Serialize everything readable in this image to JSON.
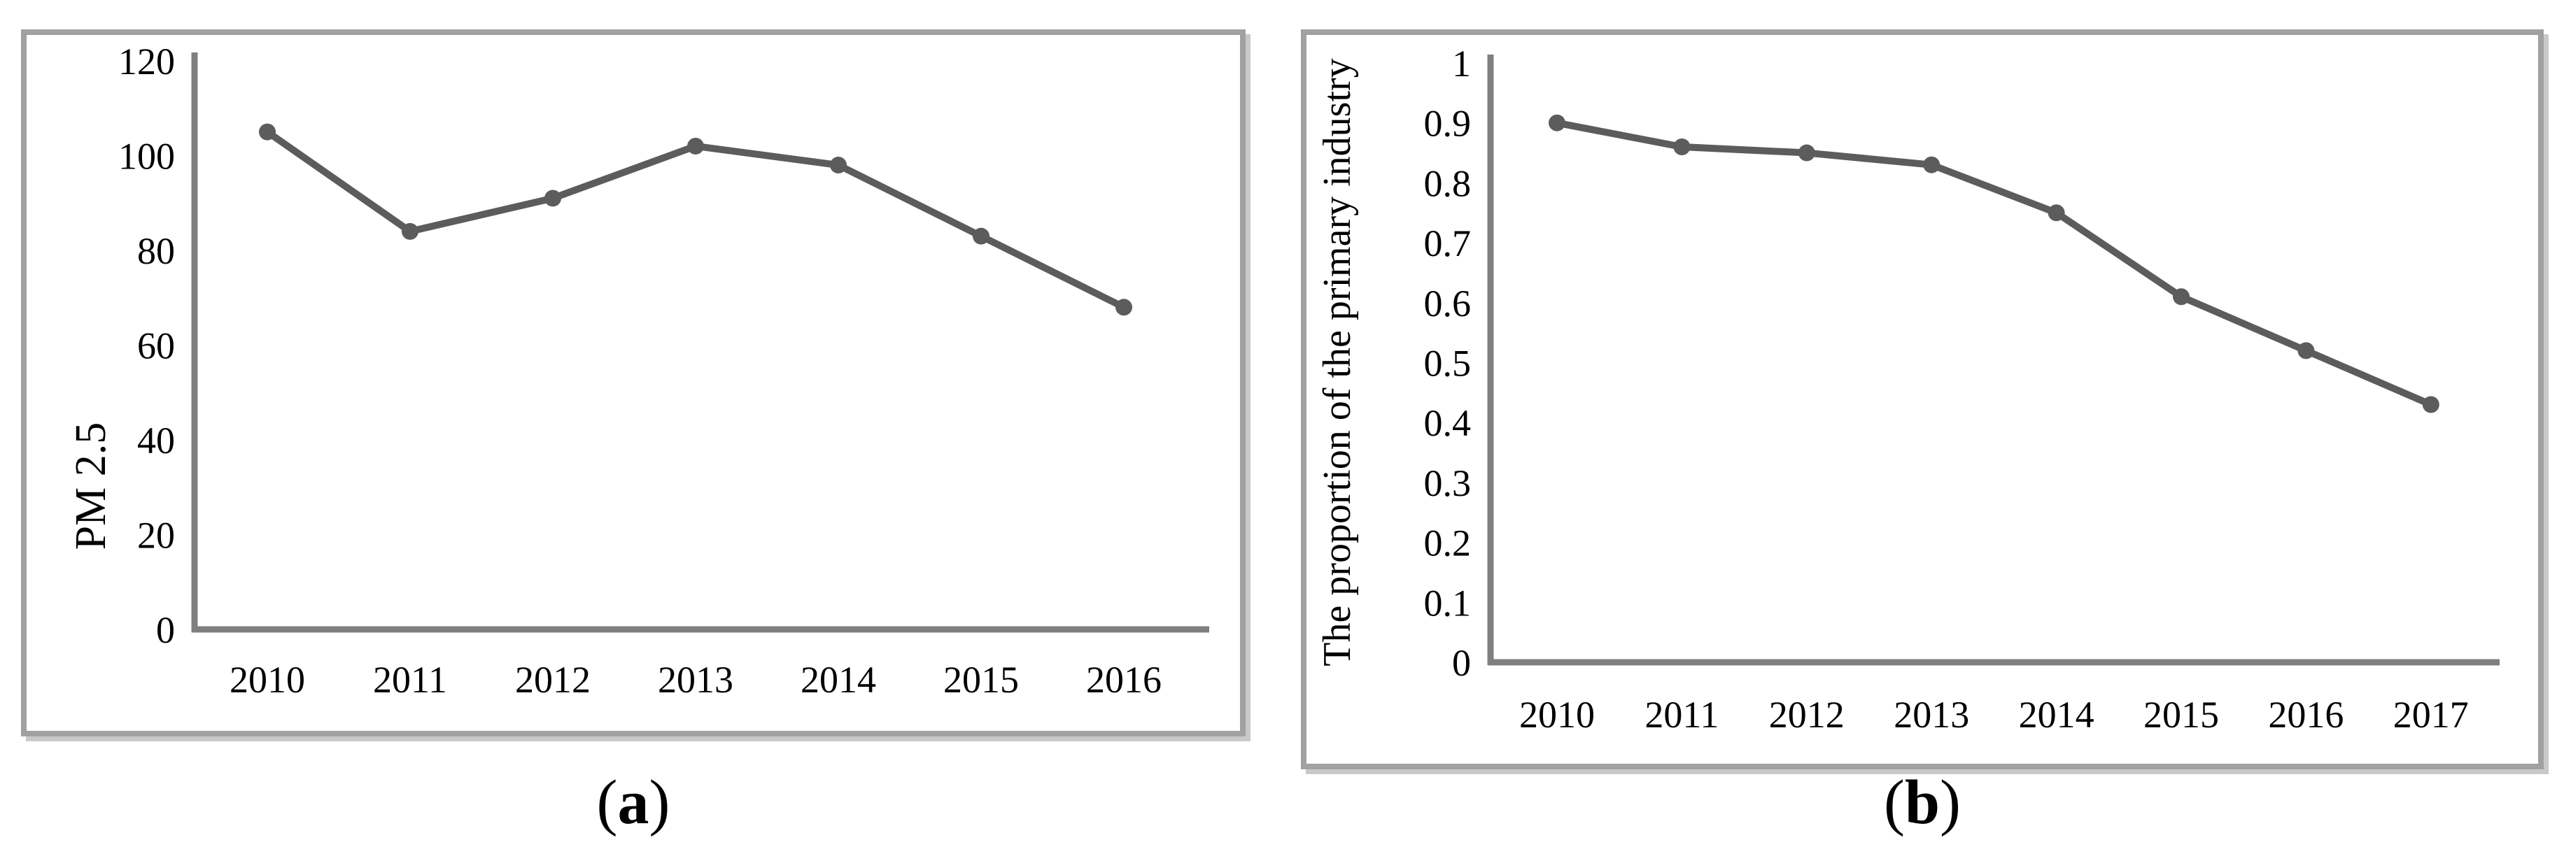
{
  "captions": [
    {
      "prefix": "(",
      "label": "a",
      "suffix": ")"
    },
    {
      "prefix": "(",
      "label": "b",
      "suffix": ")"
    }
  ],
  "colors": {
    "line": "#5c5c5c",
    "marker": "#5c5c5c",
    "axis": "#7f7f7f",
    "panel_border": "#a1a1a1",
    "text": "#000000",
    "background": "#ffffff"
  },
  "chart_data": [
    {
      "id": "pm25-trend",
      "type": "line",
      "title": "",
      "xlabel": "",
      "ylabel": "PM 2.5",
      "categories": [
        "2010",
        "2011",
        "2012",
        "2013",
        "2014",
        "2015",
        "2016"
      ],
      "values": [
        105,
        84,
        91,
        102,
        98,
        83,
        68
      ],
      "ylim": [
        0,
        120
      ],
      "yticks": [
        0,
        20,
        40,
        60,
        80,
        100,
        120
      ],
      "ytick_labels": [
        "0",
        "20",
        "40",
        "60",
        "80",
        "100",
        "120"
      ],
      "grid": false,
      "legend": "none",
      "marker": "circle",
      "caption": "(a)"
    },
    {
      "id": "primary-industry-proportion",
      "type": "line",
      "title": "",
      "xlabel": "",
      "ylabel": "The proportion of the primary industry",
      "categories": [
        "2010",
        "2011",
        "2012",
        "2013",
        "2014",
        "2015",
        "2016",
        "2017"
      ],
      "values": [
        0.9,
        0.86,
        0.85,
        0.83,
        0.75,
        0.61,
        0.52,
        0.43
      ],
      "ylim": [
        0,
        1
      ],
      "yticks": [
        0,
        0.1,
        0.2,
        0.3,
        0.4,
        0.5,
        0.6,
        0.7,
        0.8,
        0.9,
        1
      ],
      "ytick_labels": [
        "0",
        "0.1",
        "0.2",
        "0.3",
        "0.4",
        "0.5",
        "0.6",
        "0.7",
        "0.8",
        "0.9",
        "1"
      ],
      "grid": false,
      "legend": "none",
      "marker": "circle",
      "caption": "(b)"
    }
  ]
}
